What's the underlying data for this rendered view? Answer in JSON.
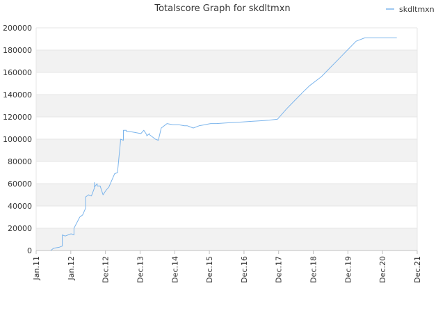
{
  "chart_data": {
    "type": "line",
    "title": "Totalscore Graph for skdltmxn",
    "xlabel": "",
    "ylabel": "",
    "legend": {
      "position": "top-right",
      "entries": [
        "skdltmxn"
      ]
    },
    "grid": true,
    "ylim": [
      0,
      200000
    ],
    "y_ticks": [
      0,
      20000,
      40000,
      60000,
      80000,
      100000,
      120000,
      140000,
      160000,
      180000,
      200000
    ],
    "y_tick_labels": [
      "0",
      "20000",
      "40000",
      "60000",
      "80000",
      "100000",
      "120000",
      "140000",
      "160000",
      "180000",
      "200000"
    ],
    "x_tick_labels": [
      "Jan.11",
      "Jan.12",
      "Dec.12",
      "Dec.13",
      "Dec.14",
      "Dec.15",
      "Dec.16",
      "Dec.17",
      "Dec.18",
      "Dec.19",
      "Dec.20",
      "Dec.21"
    ],
    "colors": {
      "series": "#7cb5ec",
      "band": "#f2f2f2",
      "grid": "#e6e6e6",
      "axis": "#c0c0c0"
    },
    "series": [
      {
        "name": "skdltmxn",
        "x": [
          "2011-06",
          "2011-07",
          "2011-09",
          "2011-10",
          "2011-10",
          "2011-11",
          "2012-01",
          "2012-02",
          "2012-02",
          "2012-04",
          "2012-05",
          "2012-06",
          "2012-06",
          "2012-07",
          "2012-08",
          "2012-09",
          "2012-09",
          "2012-09",
          "2012-10",
          "2012-10",
          "2012-10",
          "2012-11",
          "2012-12",
          "2013-01",
          "2013-02",
          "2013-04",
          "2013-05",
          "2013-05",
          "2013-06",
          "2013-06",
          "2013-07",
          "2013-07",
          "2013-07",
          "2013-08",
          "2013-08",
          "2013-08",
          "2013-10",
          "2013-11",
          "2014-01",
          "2014-02",
          "2014-03",
          "2014-03",
          "2014-04",
          "2014-04",
          "2014-06",
          "2014-07",
          "2014-08",
          "2014-09",
          "2014-10",
          "2014-12",
          "2015-02",
          "2015-04",
          "2015-05",
          "2015-06",
          "2015-07",
          "2015-09",
          "2015-11",
          "2015-12",
          "2016-01",
          "2016-03",
          "2016-06",
          "2016-09",
          "2016-12",
          "2017-03",
          "2017-06",
          "2017-09",
          "2017-12",
          "2018-03",
          "2018-06",
          "2018-09",
          "2018-11",
          "2019-03",
          "2019-06",
          "2019-09",
          "2019-12",
          "2020-03",
          "2020-06",
          "2020-09",
          "2020-12",
          "2021-03",
          "2021-05"
        ],
        "values": [
          0,
          2000,
          3000,
          4000,
          14000,
          13000,
          15000,
          14000,
          20000,
          30000,
          32000,
          38000,
          48000,
          50000,
          49000,
          56000,
          61000,
          57000,
          60000,
          59000,
          58000,
          58000,
          50000,
          54000,
          57000,
          69000,
          70000,
          71000,
          98000,
          100000,
          99000,
          99000,
          108000,
          108000,
          107500,
          107000,
          106500,
          106000,
          105000,
          108000,
          104000,
          103000,
          105000,
          104000,
          100000,
          99000,
          110000,
          112000,
          114000,
          113000,
          113000,
          112000,
          112000,
          111000,
          110000,
          112000,
          113000,
          113500,
          114000,
          114000,
          114500,
          115000,
          115500,
          116000,
          116500,
          117000,
          118000,
          127000,
          135000,
          143000,
          148000,
          156000,
          164000,
          172000,
          180000,
          188000,
          191000,
          191000,
          191000,
          191000,
          191000
        ]
      }
    ]
  }
}
